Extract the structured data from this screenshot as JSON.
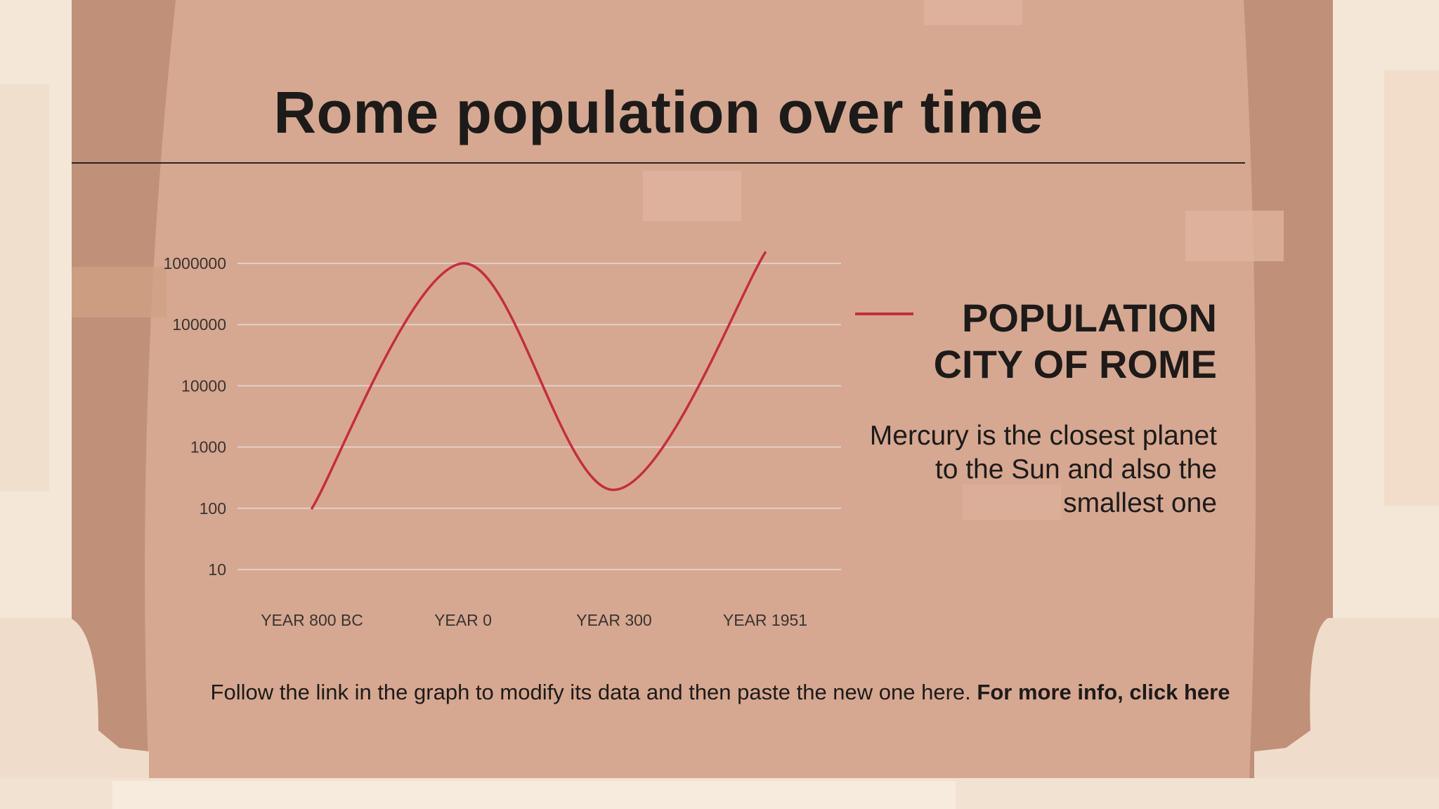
{
  "slide": {
    "title": "Rome population over time",
    "legend_title_line1": "POPULATION",
    "legend_title_line2": "CITY OF ROME",
    "legend_color": "#c72d3c",
    "description": "Mercury is the closest planet to the Sun and also the smallest one",
    "footnote_text": "Follow the link in the graph to modify its data and then paste the new one here.",
    "footnote_link": "For more info, click here"
  },
  "colors": {
    "panel": "#d6a891",
    "curtain": "#c09079",
    "column": "#f4e7d8",
    "text": "#1d1b1a",
    "gridline": "#e2cfc6"
  },
  "chart_data": {
    "type": "line",
    "title": "",
    "xlabel": "",
    "ylabel": "",
    "y_scale": "log",
    "ylim": [
      10,
      1000000
    ],
    "y_ticks": [
      "10",
      "100",
      "1000",
      "10000",
      "100000",
      "1000000"
    ],
    "categories": [
      "YEAR 800 BC",
      "YEAR 0",
      "YEAR 300",
      "YEAR 1951"
    ],
    "series": [
      {
        "name": "POPULATION CITY OF ROME",
        "values": [
          100,
          1000000,
          200,
          1500000
        ]
      }
    ],
    "grid": true,
    "legend": "right"
  }
}
